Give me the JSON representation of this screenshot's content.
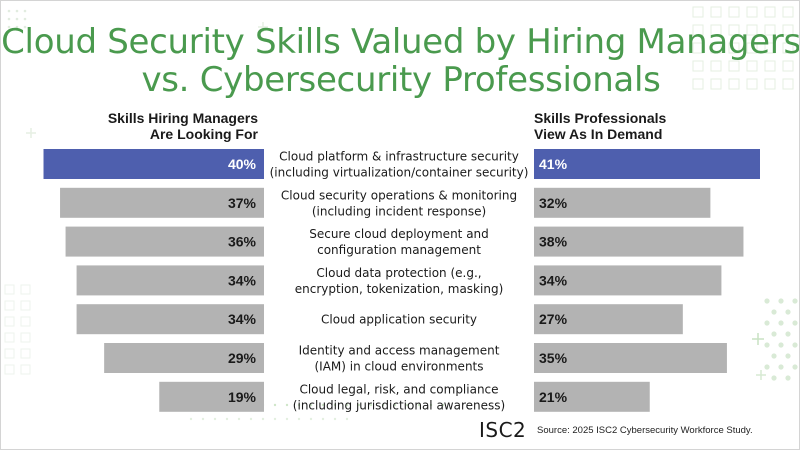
{
  "title": {
    "line1": "Cloud Security Skills Valued by Hiring Managers",
    "line2": "vs. Cybersecurity Professionals"
  },
  "headers": {
    "left": "Skills Hiring Managers\nAre Looking For",
    "right": "Skills Professionals\nView As In Demand"
  },
  "colors": {
    "title": "#4a9a4e",
    "highlight": "#4e5fae",
    "bar": "#b3b3b3",
    "label_text": "#1a1a1a",
    "highlight_text": "#ffffff"
  },
  "chart_data": {
    "type": "bar",
    "orientation": "horizontal-butterfly",
    "categories": [
      [
        "Cloud platform & infrastructure security",
        "(including virtualization/container security)"
      ],
      [
        "Cloud security operations & monitoring",
        "(including incident response)"
      ],
      [
        "Secure cloud deployment and",
        "configuration management"
      ],
      [
        "Cloud data protection (e.g.,",
        "encryption, tokenization, masking)"
      ],
      [
        "Cloud application security"
      ],
      [
        "Identity and access management",
        "(IAM) in cloud environments"
      ],
      [
        "Cloud legal, risk, and compliance",
        "(including jurisdictional awareness)"
      ]
    ],
    "series": [
      {
        "name": "Skills Hiring Managers Are Looking For",
        "values": [
          40,
          37,
          36,
          34,
          34,
          29,
          19
        ],
        "labels": [
          "40%",
          "37%",
          "36%",
          "34%",
          "34%",
          "29%",
          "19%"
        ]
      },
      {
        "name": "Skills Professionals View As In Demand",
        "values": [
          41,
          32,
          38,
          34,
          27,
          35,
          21
        ],
        "labels": [
          "41%",
          "32%",
          "38%",
          "34%",
          "27%",
          "35%",
          "21%"
        ]
      }
    ],
    "highlight_index": 0,
    "xlim": [
      0,
      41
    ]
  },
  "footer": {
    "logo": "ISC2",
    "source": "Source: 2025 ISC2 Cybersecurity Workforce Study."
  }
}
